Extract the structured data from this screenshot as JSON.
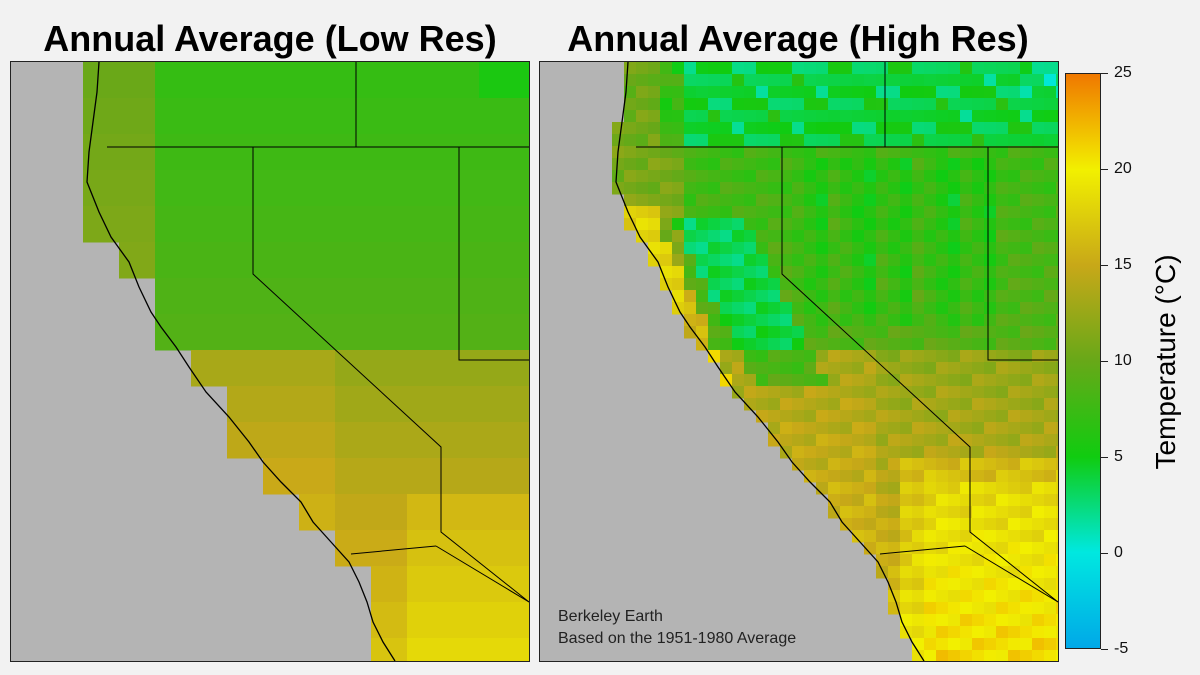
{
  "titles": {
    "left": "Annual Average (Low Res)",
    "right": "Annual Average (High Res)"
  },
  "source_note": {
    "line1": "Berkeley Earth",
    "line2": "Based on the 1951-1980 Average"
  },
  "colorbar": {
    "label": "Temperature  (°C)",
    "min": -5,
    "max": 25,
    "ticks": [
      "25",
      "20",
      "15",
      "10",
      "5",
      "0",
      "-5"
    ],
    "tick_values": [
      25,
      20,
      15,
      10,
      5,
      0,
      -5
    ],
    "stops": [
      {
        "t": -5,
        "color": "#00a8e8"
      },
      {
        "t": 0,
        "color": "#00e8e0"
      },
      {
        "t": 5,
        "color": "#10cc10"
      },
      {
        "t": 10,
        "color": "#68a818"
      },
      {
        "t": 15,
        "color": "#c8a818"
      },
      {
        "t": 20,
        "color": "#f2f000"
      },
      {
        "t": 25,
        "color": "#f07800"
      }
    ]
  },
  "colors": {
    "ocean": "#b4b4b4",
    "background": "#f2f2f2",
    "borders": "#000000"
  }
}
